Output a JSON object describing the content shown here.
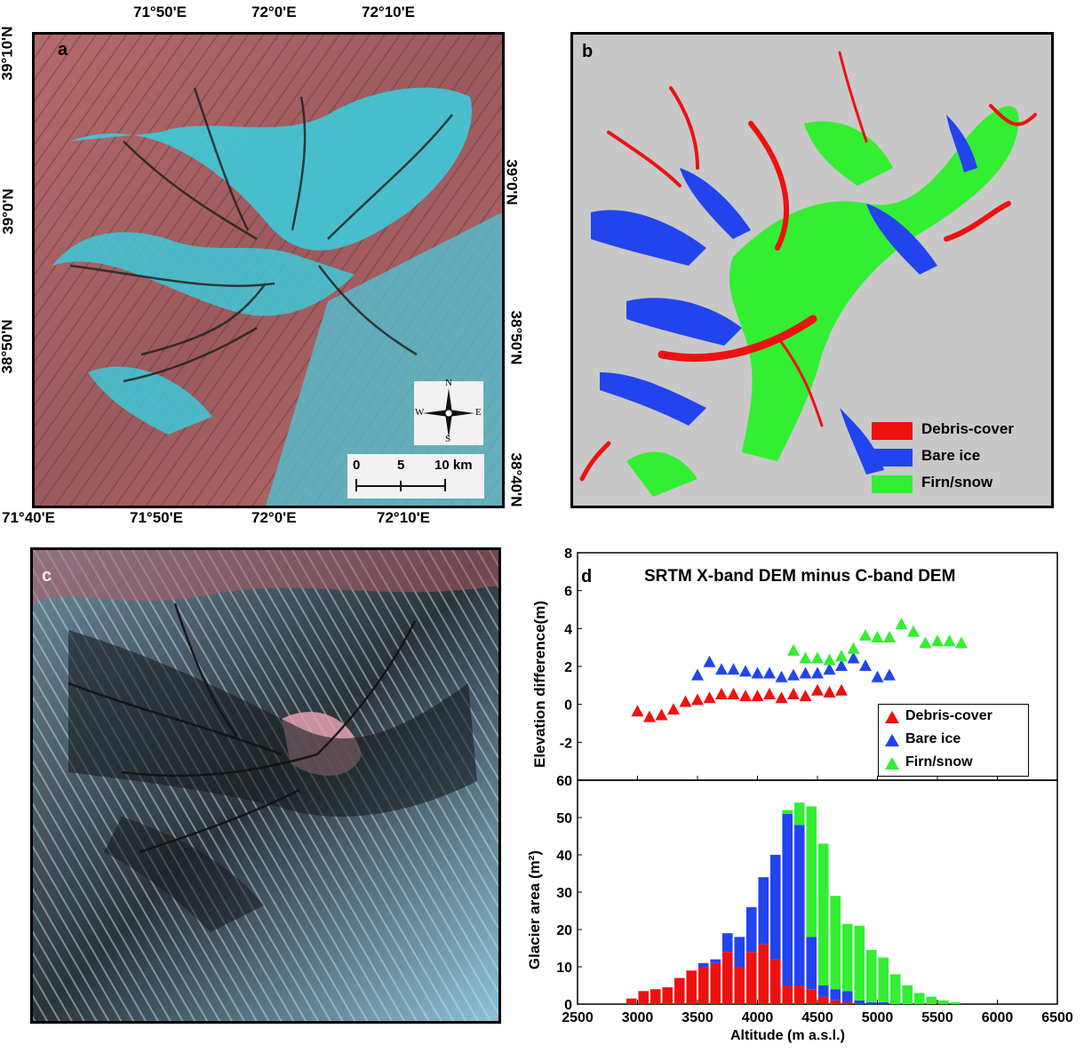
{
  "panel_a": {
    "letter": "a",
    "top_lon_labels": [
      "71°50'E",
      "72°0'E",
      "72°10'E"
    ],
    "bottom_lon_labels": [
      "71°40'E",
      "71°50'E",
      "72°0'E",
      "72°10'E"
    ],
    "left_lat_labels": [
      "39°10'N",
      "39°0'N",
      "38°50'N"
    ],
    "right_lat_labels": [
      "39°0'N",
      "38°50'N",
      "38°40'N"
    ],
    "compass": {
      "n": "N",
      "s": "S",
      "e": "E",
      "w": "W"
    },
    "scale": {
      "t0": "0",
      "t5": "5",
      "t10": "10 km"
    }
  },
  "panel_b": {
    "letter": "b",
    "legend": [
      "Debris-cover",
      "Bare ice",
      "Firn/snow"
    ],
    "colors": {
      "debris": "#ee1111",
      "bare": "#2244ee",
      "firn": "#33ee33",
      "bg": "#c8c8c8"
    }
  },
  "panel_c": {
    "letter": "c"
  },
  "panel_d": {
    "letter": "d",
    "title": "SRTM X-band DEM minus C-band DEM",
    "top_ylabel": "Elevation difference(m)",
    "bottom_ylabel": "Glacier area (m²)",
    "xlabel": "Altitude (m a.s.l.)",
    "legend": [
      "Debris-cover",
      "Bare ice",
      "Firn/snow"
    ]
  },
  "chart_data": [
    {
      "type": "scatter",
      "title": "SRTM X-band DEM minus C-band DEM",
      "xlabel": "Altitude (m a.s.l.)",
      "ylabel": "Elevation difference(m)",
      "xlim": [
        2500,
        6500
      ],
      "ylim": [
        -4,
        8
      ],
      "yticks": [
        -2,
        0,
        2,
        4,
        6,
        8
      ],
      "legend_position": "bottom-right",
      "series": [
        {
          "name": "Debris-cover",
          "color": "#ee1111",
          "x": [
            3000,
            3100,
            3200,
            3300,
            3400,
            3500,
            3600,
            3700,
            3800,
            3900,
            4000,
            4100,
            4200,
            4300,
            4400,
            4500,
            4600,
            4700
          ],
          "y": [
            -0.4,
            -0.7,
            -0.6,
            -0.3,
            0.1,
            0.2,
            0.3,
            0.5,
            0.5,
            0.4,
            0.4,
            0.5,
            0.3,
            0.5,
            0.4,
            0.7,
            0.6,
            0.7
          ]
        },
        {
          "name": "Bare ice",
          "color": "#2244ee",
          "x": [
            3500,
            3600,
            3700,
            3800,
            3900,
            4000,
            4100,
            4200,
            4300,
            4400,
            4500,
            4600,
            4700,
            4800,
            4900,
            5000,
            5100
          ],
          "y": [
            1.5,
            2.2,
            1.8,
            1.8,
            1.7,
            1.6,
            1.6,
            1.4,
            1.5,
            1.6,
            1.6,
            1.8,
            2.0,
            2.4,
            2.0,
            1.4,
            1.5
          ]
        },
        {
          "name": "Firn/snow",
          "color": "#33ee33",
          "x": [
            4300,
            4400,
            4500,
            4600,
            4700,
            4800,
            4900,
            5000,
            5100,
            5200,
            5300,
            5400,
            5500,
            5600,
            5700
          ],
          "y": [
            2.8,
            2.4,
            2.4,
            2.3,
            2.5,
            2.9,
            3.6,
            3.5,
            3.5,
            4.2,
            3.8,
            3.2,
            3.3,
            3.3,
            3.2
          ]
        }
      ]
    },
    {
      "type": "bar",
      "stacked": true,
      "xlabel": "Altitude (m a.s.l.)",
      "ylabel": "Glacier area (m²)",
      "xlim": [
        2500,
        6500
      ],
      "ylim": [
        0,
        60
      ],
      "xticks": [
        2500,
        3000,
        3500,
        4000,
        4500,
        5000,
        5500,
        6000,
        6500
      ],
      "yticks": [
        0,
        10,
        20,
        30,
        40,
        50,
        60
      ],
      "x": [
        2950,
        3050,
        3150,
        3250,
        3350,
        3450,
        3550,
        3650,
        3750,
        3850,
        3950,
        4050,
        4150,
        4250,
        4350,
        4450,
        4550,
        4650,
        4750,
        4850,
        4950,
        5050,
        5150,
        5250,
        5350,
        5450,
        5550,
        5650
      ],
      "series": [
        {
          "name": "Debris-cover",
          "color": "#ee1111",
          "values": [
            1.5,
            3.5,
            4,
            4.5,
            7,
            9,
            10,
            11,
            14,
            10,
            14,
            16,
            12,
            5,
            5,
            4,
            2,
            1,
            0.5,
            0,
            0,
            0,
            0,
            0,
            0,
            0,
            0,
            0
          ]
        },
        {
          "name": "Bare ice",
          "color": "#2244ee",
          "values": [
            0,
            0,
            0,
            0,
            0,
            0,
            1,
            1,
            5,
            8,
            12,
            18,
            28,
            46,
            43,
            14,
            3,
            3,
            3,
            1,
            0.5,
            0.5,
            0,
            0,
            0,
            0,
            0,
            0
          ]
        },
        {
          "name": "Firn/snow",
          "color": "#33ee33",
          "values": [
            0,
            0,
            0,
            0,
            0,
            0,
            0,
            0,
            0,
            0,
            0,
            0,
            0,
            1,
            6,
            35,
            38,
            25,
            18,
            20,
            14,
            12,
            8,
            5,
            3,
            2,
            1,
            0.5
          ]
        }
      ]
    }
  ]
}
